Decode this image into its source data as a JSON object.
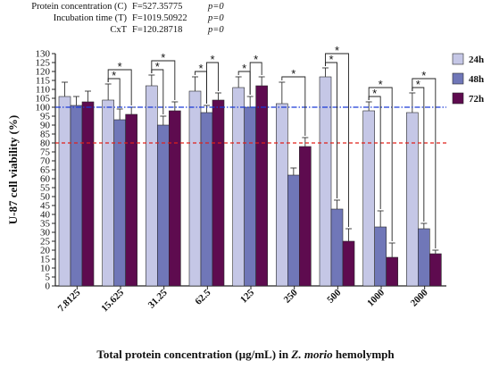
{
  "stats": [
    {
      "label": "Protein concentration (C)",
      "f": "F=527.35775",
      "p": "p=0"
    },
    {
      "label": "Incubation time (T)",
      "f": "F=1019.50922",
      "p": "p=0"
    },
    {
      "label": "CxT",
      "f": "F=120.28718",
      "p": "p=0"
    }
  ],
  "chart_data": {
    "type": "bar",
    "categories": [
      "7.8125",
      "15.625",
      "31.25",
      "62.5",
      "125",
      "250",
      "500",
      "1000",
      "2000"
    ],
    "series": [
      {
        "name": "24h",
        "color": "#c5c7e6",
        "values": [
          106,
          104,
          112,
          109,
          111,
          102,
          117,
          98,
          97
        ],
        "errors": [
          8,
          9,
          6,
          8,
          6,
          12,
          5,
          5,
          11
        ]
      },
      {
        "name": "48h",
        "color": "#7077b8",
        "values": [
          101,
          93,
          90,
          97,
          100,
          62,
          43,
          33,
          32
        ],
        "errors": [
          5,
          6,
          5,
          4,
          6,
          4,
          5,
          9,
          3
        ]
      },
      {
        "name": "72h",
        "color": "#5e0b4f",
        "values": [
          103,
          96,
          98,
          104,
          112,
          78,
          25,
          16,
          18
        ],
        "errors": [
          6,
          4,
          5,
          4,
          5,
          5,
          7,
          8,
          2
        ]
      }
    ],
    "xlabel_parts": [
      "Total protein concentration (µg/mL) in ",
      "Z. morio",
      " hemolymph"
    ],
    "ylabel": "U-87 cell viability (%)",
    "ylim": [
      0,
      130
    ],
    "yticks": [
      0,
      5,
      10,
      15,
      20,
      25,
      30,
      35,
      40,
      45,
      50,
      55,
      60,
      65,
      70,
      75,
      80,
      85,
      90,
      95,
      100,
      105,
      110,
      115,
      120,
      125,
      130
    ],
    "reference_lines": [
      {
        "y": 100,
        "color": "#1a3ad6",
        "style": "dash-dot"
      },
      {
        "y": 80,
        "color": "#e0201b",
        "style": "dashed"
      }
    ],
    "significance_marker": "*",
    "significance_brackets": [
      {
        "category": 1,
        "from": 0,
        "to": 1,
        "level": 0
      },
      {
        "category": 1,
        "from": 0,
        "to": 2,
        "level": 1
      },
      {
        "category": 2,
        "from": 0,
        "to": 1,
        "level": 0
      },
      {
        "category": 2,
        "from": 0,
        "to": 2,
        "level": 1
      },
      {
        "category": 3,
        "from": 0,
        "to": 1,
        "level": 0
      },
      {
        "category": 3,
        "from": 1,
        "to": 2,
        "level": 1
      },
      {
        "category": 4,
        "from": 0,
        "to": 1,
        "level": 0
      },
      {
        "category": 4,
        "from": 1,
        "to": 2,
        "level": 1
      },
      {
        "category": 5,
        "from": 0,
        "to": 2,
        "level": 0
      },
      {
        "category": 6,
        "from": 0,
        "to": 1,
        "level": 0
      },
      {
        "category": 6,
        "from": 0,
        "to": 2,
        "level": 1
      },
      {
        "category": 7,
        "from": 0,
        "to": 1,
        "level": 0
      },
      {
        "category": 7,
        "from": 0,
        "to": 2,
        "level": 1
      },
      {
        "category": 8,
        "from": 0,
        "to": 1,
        "level": 0
      },
      {
        "category": 8,
        "from": 0,
        "to": 2,
        "level": 1
      }
    ],
    "legend_position": "right",
    "grid": false
  }
}
